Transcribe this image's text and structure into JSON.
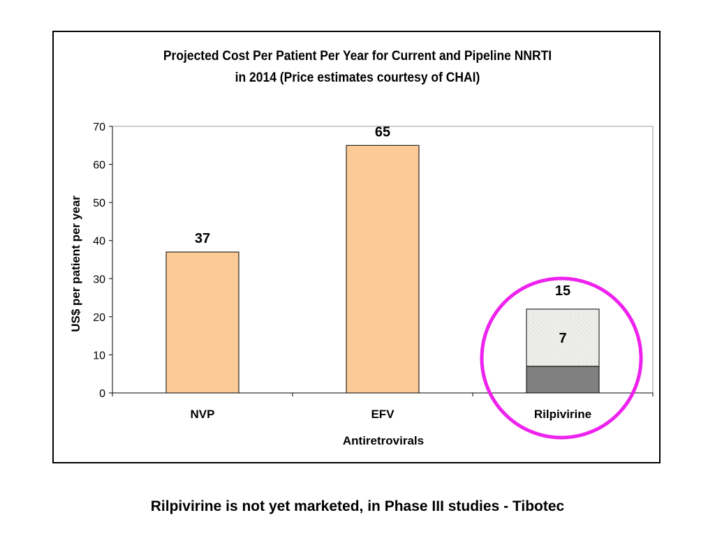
{
  "chart_data": {
    "type": "bar",
    "title_lines": [
      "Projected Cost Per Patient Per Year for Current and Pipeline NNRTI",
      "in 2014 (Price estimates courtesy of CHAI)"
    ],
    "xlabel": "Antiretrovirals",
    "ylabel": "US$ per patient per year",
    "ylim": [
      0,
      70
    ],
    "yticks": [
      0,
      10,
      20,
      30,
      40,
      50,
      60,
      70
    ],
    "categories": [
      "NVP",
      "EFV",
      "Rilpivirine"
    ],
    "values": [
      37,
      65,
      null
    ],
    "stacked": {
      "category": "Rilpivirine",
      "segments": [
        {
          "value": 7,
          "label": "7",
          "color": "#808080"
        },
        {
          "value": 15,
          "label": "15",
          "color": "#eeeeea"
        }
      ]
    },
    "data_labels": [
      "37",
      "65",
      null
    ],
    "bar_color": "#fcca96",
    "highlight_color": "#ee22ee",
    "grid": false
  },
  "caption": "Rilpivirine is not yet marketed, in Phase III studies - Tibotec"
}
